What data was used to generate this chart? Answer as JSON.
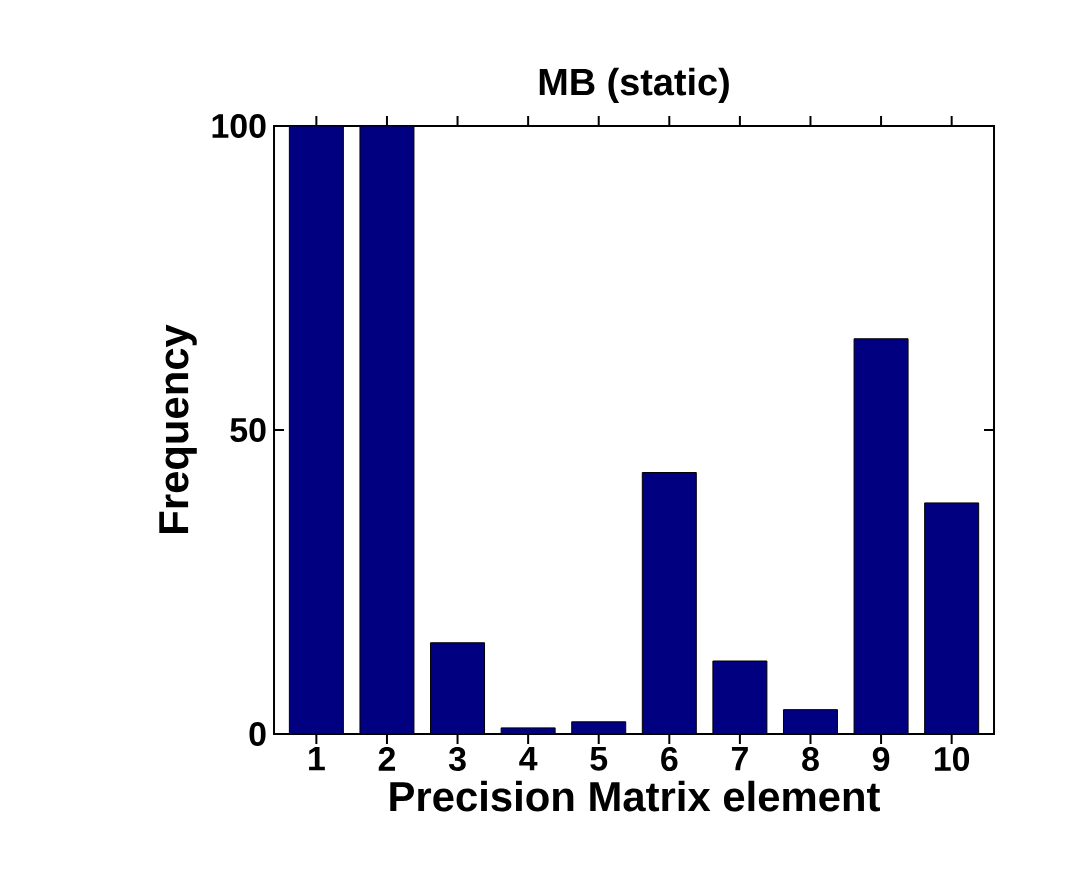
{
  "chart_data": {
    "type": "bar",
    "title": "MB (static)",
    "xlabel": "Precision Matrix element",
    "ylabel": "Frequency",
    "categories": [
      "1",
      "2",
      "3",
      "4",
      "5",
      "6",
      "7",
      "8",
      "9",
      "10"
    ],
    "values": [
      100,
      100,
      15,
      1,
      2,
      43,
      12,
      4,
      65,
      38
    ],
    "color": "#000080",
    "ylim": [
      0,
      100
    ],
    "yticks": [
      0,
      50,
      100
    ],
    "grid": false
  }
}
